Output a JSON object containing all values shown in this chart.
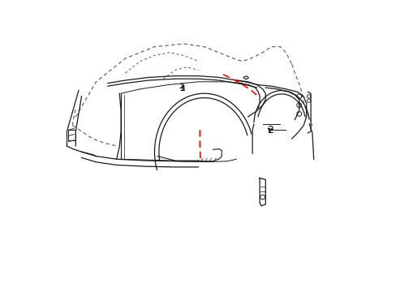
{
  "background_color": "#ffffff",
  "line_color": "#1a1a1a",
  "red_dash_color": "#ff0000",
  "outer_dash_color": "#555555",
  "label1": "1",
  "label2": "2",
  "figsize": [
    4.89,
    3.6
  ],
  "dpi": 100
}
